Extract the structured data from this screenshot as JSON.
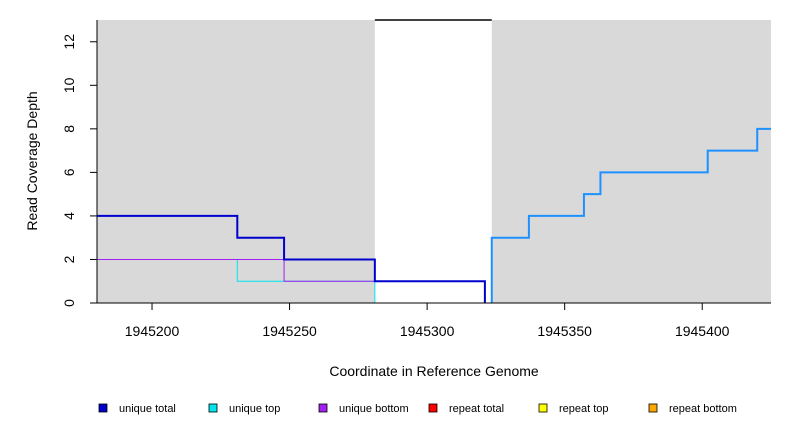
{
  "chart_data": {
    "type": "line",
    "step": true,
    "xlabel": "Coordinate in Reference Genome",
    "ylabel": "Read Coverage Depth",
    "xlim": [
      1945180,
      1945425
    ],
    "ylim": [
      0,
      13
    ],
    "x_ticks": [
      1945200,
      1945250,
      1945300,
      1945350,
      1945400
    ],
    "x_tick_labels": [
      "1945200",
      "1945250",
      "1945300",
      "1945350",
      "1945400"
    ],
    "y_ticks": [
      0,
      2,
      4,
      6,
      8,
      10,
      12
    ],
    "y_tick_labels": [
      "0",
      "2",
      "4",
      "6",
      "8",
      "10",
      "12"
    ],
    "shaded_regions": [
      {
        "from": 1945180,
        "to": 1945281,
        "color": "#d9d9d9"
      },
      {
        "from": 1945323.5,
        "to": 1945425,
        "color": "#d9d9d9"
      }
    ],
    "gap_marker": {
      "from": 1945281,
      "to": 1945323.5,
      "y": 13,
      "color": "#000000"
    },
    "series": [
      {
        "name": "unique total",
        "color": "#0000cd",
        "width": 2,
        "points": [
          [
            1945180,
            4
          ],
          [
            1945231,
            4
          ],
          [
            1945231,
            3
          ],
          [
            1945248,
            3
          ],
          [
            1945248,
            2
          ],
          [
            1945281,
            2
          ],
          [
            1945281,
            1
          ],
          [
            1945321,
            1
          ],
          [
            1945321,
            0
          ]
        ]
      },
      {
        "name": "unique top",
        "color": "#00e5ee",
        "width": 1,
        "points": [
          [
            1945180,
            2
          ],
          [
            1945231,
            2
          ],
          [
            1945231,
            1
          ],
          [
            1945248,
            1
          ],
          [
            1945248,
            1
          ],
          [
            1945281,
            1
          ],
          [
            1945281,
            0
          ],
          [
            1945323.5,
            0
          ]
        ]
      },
      {
        "name": "unique bottom",
        "color": "#a020f0",
        "width": 1,
        "points": [
          [
            1945180,
            2
          ],
          [
            1945248,
            2
          ],
          [
            1945248,
            1
          ],
          [
            1945321,
            1
          ],
          [
            1945321,
            0
          ],
          [
            1945425,
            0
          ]
        ]
      },
      {
        "name": "repeat total",
        "color": "#ff0000",
        "width": 1,
        "points": []
      },
      {
        "name": "repeat top",
        "color": "#ffff00",
        "width": 1,
        "points": []
      },
      {
        "name": "repeat bottom",
        "color": "#ffa500",
        "width": 1,
        "points": [
          [
            1945180,
            0
          ],
          [
            1945281,
            0
          ]
        ]
      },
      {
        "name": "right unique total",
        "color": "#1e90ff",
        "width": 2,
        "in_legend": false,
        "points": [
          [
            1945323.5,
            0
          ],
          [
            1945323.5,
            3
          ],
          [
            1945337,
            3
          ],
          [
            1945337,
            4
          ],
          [
            1945357,
            4
          ],
          [
            1945357,
            5
          ],
          [
            1945363,
            5
          ],
          [
            1945363,
            6
          ],
          [
            1945402,
            6
          ],
          [
            1945402,
            7
          ],
          [
            1945420,
            7
          ],
          [
            1945420,
            8
          ],
          [
            1945425,
            8
          ]
        ]
      }
    ],
    "legend": {
      "placement": "bottom",
      "entries": [
        {
          "label": "unique total",
          "color": "#0000cd"
        },
        {
          "label": "unique top",
          "color": "#00e5ee"
        },
        {
          "label": "unique bottom",
          "color": "#a020f0"
        },
        {
          "label": "repeat total",
          "color": "#ff0000"
        },
        {
          "label": "repeat top",
          "color": "#ffff00"
        },
        {
          "label": "repeat bottom",
          "color": "#ffa500"
        }
      ]
    }
  }
}
